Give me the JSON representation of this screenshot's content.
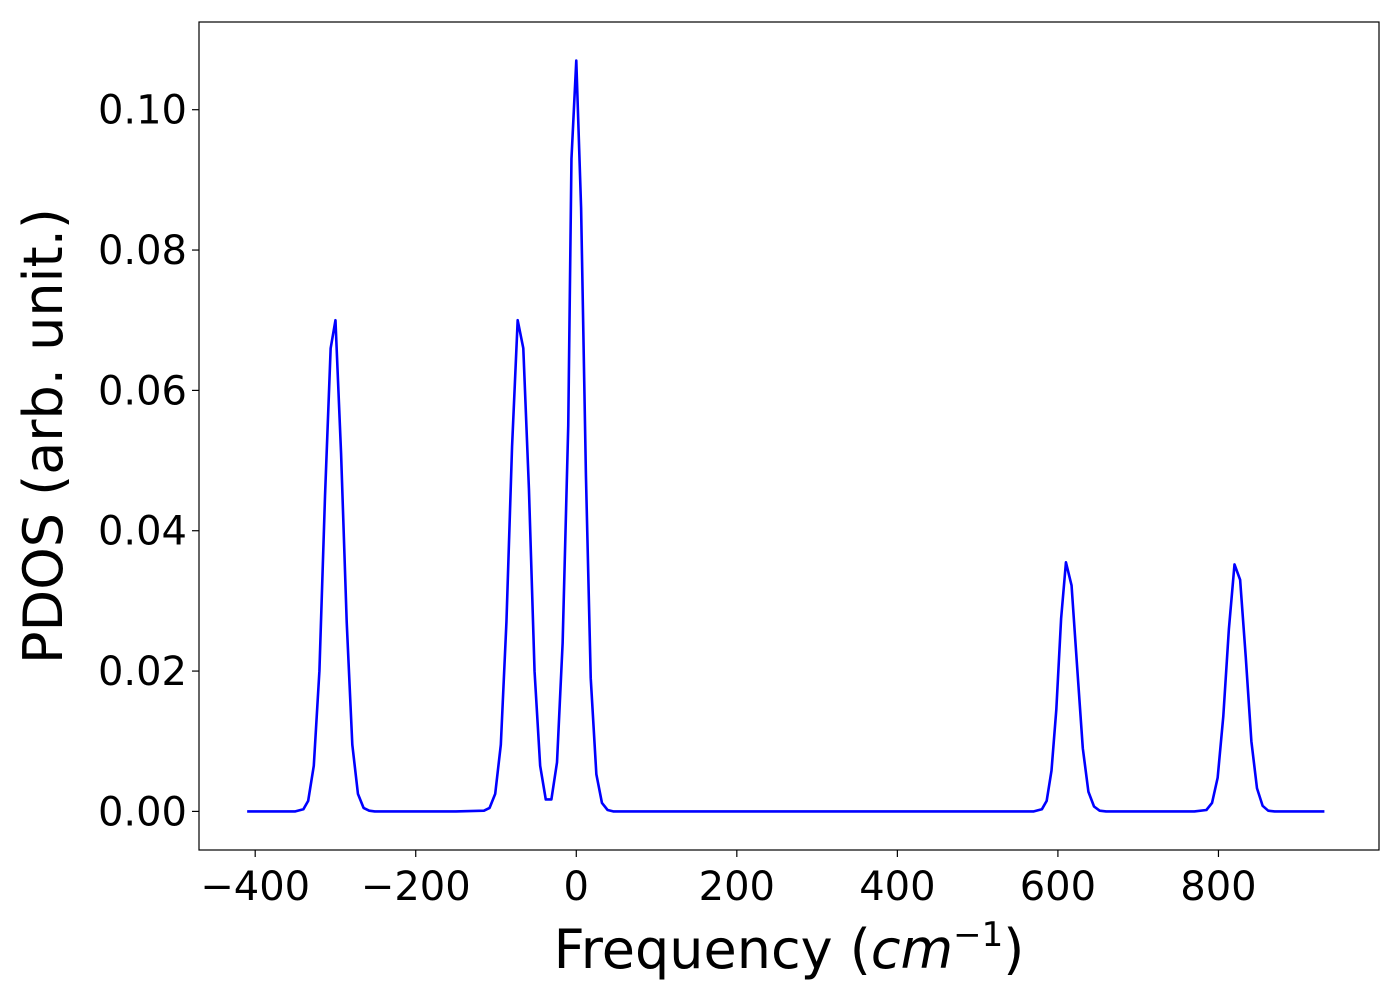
{
  "chart_data": {
    "type": "line",
    "title": "",
    "xlabel": "Frequency (cm^-1)",
    "xlabel_parts": {
      "prefix": "Frequency (",
      "var": "cm",
      "sup": "−1",
      "suffix": ")"
    },
    "ylabel": "PDOS (arb. unit.)",
    "xlim": [
      -470,
      1000
    ],
    "ylim": [
      -0.0055,
      0.1125
    ],
    "xticks": [
      -400,
      -200,
      0,
      200,
      400,
      600,
      800
    ],
    "xtick_labels": [
      "−400",
      "−200",
      "0",
      "200",
      "400",
      "600",
      "800"
    ],
    "yticks": [
      0.0,
      0.02,
      0.04,
      0.06,
      0.08,
      0.1
    ],
    "ytick_labels": [
      "0.00",
      "0.02",
      "0.04",
      "0.06",
      "0.08",
      "0.10"
    ],
    "grid": false,
    "line_color": "#0000ff",
    "series": [
      {
        "x": [
          -410,
          -380,
          -350,
          -340,
          -334,
          -327,
          -320,
          -313,
          -306,
          -300,
          -293,
          -286,
          -279,
          -272,
          -265,
          -258,
          -251,
          -240,
          -200,
          -150,
          -115,
          -108,
          -101,
          -94,
          -87,
          -80,
          -73,
          -66,
          -59,
          -52,
          -45,
          -38,
          -31,
          -24,
          -17,
          -10,
          -6,
          0,
          6,
          12,
          18,
          25,
          32,
          39,
          46,
          53,
          100,
          200,
          300,
          400,
          500,
          570,
          580,
          586,
          592,
          598,
          604,
          610,
          617,
          624,
          631,
          638,
          645,
          652,
          660,
          700,
          770,
          785,
          792,
          799,
          806,
          813,
          820,
          827,
          834,
          841,
          848,
          855,
          862,
          870,
          932
        ],
        "y": [
          0.0,
          0.0,
          0.0,
          0.0003,
          0.0015,
          0.0065,
          0.02,
          0.045,
          0.066,
          0.07,
          0.051,
          0.027,
          0.0095,
          0.0025,
          0.0005,
          0.0001,
          0.0,
          0.0,
          0.0,
          0.0,
          0.0001,
          0.0005,
          0.0025,
          0.0095,
          0.027,
          0.052,
          0.07,
          0.066,
          0.046,
          0.02,
          0.0065,
          0.0017,
          0.0017,
          0.007,
          0.024,
          0.055,
          0.093,
          0.107,
          0.086,
          0.048,
          0.019,
          0.0053,
          0.0012,
          0.0002,
          0.0,
          0.0,
          0.0,
          0.0,
          0.0,
          0.0,
          0.0,
          0.0,
          0.0003,
          0.0015,
          0.0058,
          0.0145,
          0.0275,
          0.0355,
          0.0322,
          0.0205,
          0.009,
          0.0028,
          0.0007,
          0.0001,
          0.0,
          0.0,
          0.0,
          0.0002,
          0.0012,
          0.0048,
          0.0135,
          0.026,
          0.0352,
          0.033,
          0.022,
          0.01,
          0.0033,
          0.0008,
          0.0001,
          0.0,
          0.0
        ]
      }
    ]
  }
}
